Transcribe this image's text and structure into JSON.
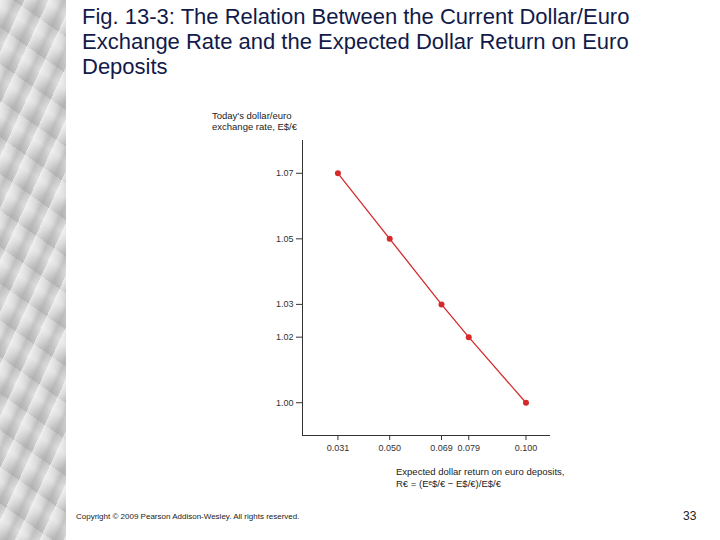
{
  "chart_data": {
    "type": "line",
    "title": "Fig. 13-3: The Relation Between the Current Dollar/Euro Exchange Rate and the Expected Dollar Return on Euro Deposits",
    "x_label": "Expected dollar return on euro deposits, R€ = (Eᵉ$/€ − E$/€)/E$/€",
    "y_label": "Today's dollar/euro exchange rate, E$/€",
    "x": [
      0.031,
      0.05,
      0.069,
      0.079,
      0.1
    ],
    "values": [
      1.07,
      1.05,
      1.03,
      1.02,
      1.0
    ],
    "color": "#d62a2a",
    "marker": "circle",
    "xlim": [
      0.018,
      0.109
    ],
    "ylim": [
      0.99,
      1.08
    ],
    "xticks": [
      0.031,
      {
        "value": 0.05,
        "label": "0.050"
      },
      0.069,
      0.079,
      {
        "value": 0.1,
        "label": "0.100"
      }
    ],
    "yticks": [
      {
        "value": 1.0,
        "label": "1.00"
      },
      1.02,
      1.03,
      1.05,
      1.07
    ],
    "grid": false,
    "annotations": [
      "Copyright © 2009 Pearson Addison-Wesley. All rights reserved.",
      "33"
    ]
  }
}
